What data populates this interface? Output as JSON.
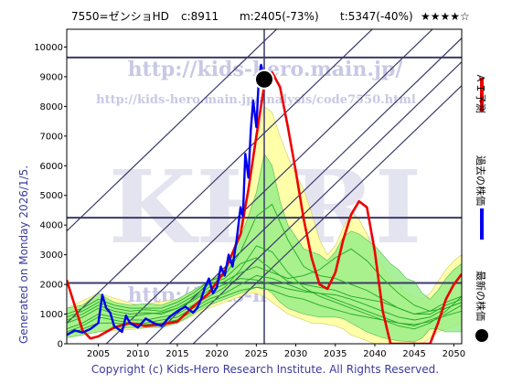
{
  "header": {
    "ticker": "7550=ゼンショHD",
    "current": "c:8911",
    "max": "m:2405(-73%)",
    "target": "t:5347(-40%)",
    "stars": "★★★★☆"
  },
  "side_labels": {
    "generated": "Generated on Monday 2026/1/5.",
    "copyright": "Copyright (c) Kids-Hero Research Institute. All Rights Reserved."
  },
  "legend": [
    {
      "label": "ＡＩ予測",
      "color": "#ee0000",
      "kind": "line"
    },
    {
      "label": "過去の株価",
      "color": "#0000ee",
      "kind": "line"
    },
    {
      "label": "最新の株価",
      "color": "#000000",
      "kind": "dot"
    }
  ],
  "watermark": {
    "url_big": "http://kids-hero.main.jp/",
    "url_small": "http://kids-hero.main.jp/analysis/code7550.html",
    "logo": "KHRI",
    "url_bottom": "http://kids-hero.main.jp/"
  },
  "colors": {
    "prediction": "#ee0000",
    "history": "#0000ee",
    "sims": "#22aa22",
    "band_green": "#99ee88",
    "band_yellow": "#ffffaa",
    "lines": "#3a3a6a"
  },
  "chart_data": {
    "type": "line",
    "xlim": [
      2001,
      2051
    ],
    "ylim": [
      0,
      10600
    ],
    "xticks": [
      "2005",
      "2010",
      "2015",
      "2020",
      "2025",
      "2030",
      "2035",
      "2040",
      "2045",
      "2050"
    ],
    "yticks": [
      "0",
      "1000",
      "2000",
      "3000",
      "4000",
      "5000",
      "6000",
      "7000",
      "8000",
      "9000",
      "10000"
    ],
    "hlines": [
      9650,
      4250,
      2050
    ],
    "vline": 2026,
    "latest": {
      "x": 2026,
      "y": 8911
    },
    "history": {
      "x": [
        2001,
        2002,
        2003,
        2004,
        2005,
        2005.5,
        2006,
        2006.5,
        2007,
        2008,
        2008.5,
        2009,
        2010,
        2011,
        2012,
        2013,
        2014,
        2015,
        2016,
        2017,
        2017.5,
        2018,
        2018.5,
        2019,
        2019.5,
        2020,
        2020.5,
        2021,
        2021.5,
        2022,
        2022.5,
        2023,
        2023.3,
        2023.6,
        2024,
        2024.3,
        2024.6,
        2025,
        2025.3,
        2025.6,
        2026
      ],
      "y": [
        300,
        450,
        380,
        500,
        700,
        1650,
        1200,
        1050,
        600,
        400,
        950,
        700,
        550,
        850,
        700,
        600,
        900,
        1100,
        1250,
        1050,
        1200,
        1500,
        1900,
        2200,
        1700,
        1900,
        2600,
        2300,
        3000,
        2600,
        3500,
        4600,
        4300,
        6400,
        5600,
        7200,
        8200,
        7300,
        8900,
        9400,
        8911
      ]
    },
    "prediction": {
      "x": [
        2001,
        2002,
        2003,
        2004,
        2005,
        2007,
        2009,
        2011,
        2013,
        2015,
        2017,
        2019,
        2021,
        2023,
        2024,
        2025,
        2026,
        2027,
        2028,
        2029,
        2030,
        2031,
        2032,
        2033,
        2034,
        2035,
        2036,
        2037,
        2038,
        2039,
        2040,
        2041,
        2042,
        2043,
        2044,
        2045,
        2046,
        2047,
        2048,
        2049,
        2050,
        2051
      ],
      "y": [
        2150,
        1300,
        450,
        180,
        250,
        550,
        700,
        600,
        650,
        750,
        1250,
        1700,
        2450,
        3700,
        5200,
        7000,
        8700,
        9150,
        8650,
        7300,
        5800,
        4200,
        2900,
        2000,
        1850,
        2400,
        3500,
        4350,
        4800,
        4600,
        3100,
        1100,
        0,
        0,
        0,
        0,
        0,
        0,
        700,
        1500,
        2000,
        2350
      ]
    },
    "sims_green_band": {
      "x": [
        2001,
        2003,
        2005,
        2007,
        2009,
        2011,
        2013,
        2015,
        2017,
        2019,
        2021,
        2023,
        2024,
        2025,
        2026,
        2027,
        2028,
        2029,
        2030,
        2031,
        2032,
        2033,
        2034,
        2035,
        2036,
        2037,
        2038,
        2039,
        2040,
        2041,
        2042,
        2043,
        2044,
        2045,
        2046,
        2047,
        2048,
        2049,
        2050,
        2051
      ],
      "upper": [
        1200,
        1300,
        1700,
        1400,
        1300,
        1350,
        1300,
        1500,
        1800,
        2100,
        2400,
        3600,
        4300,
        5100,
        6400,
        6000,
        4800,
        4000,
        3600,
        3200,
        3100,
        3000,
        2800,
        3100,
        3600,
        3800,
        3700,
        3500,
        3300,
        3000,
        2700,
        2500,
        2200,
        2100,
        1700,
        1500,
        1800,
        2200,
        2500,
        2700
      ],
      "lower": [
        200,
        300,
        400,
        500,
        550,
        550,
        550,
        700,
        1000,
        1300,
        1500,
        1700,
        1800,
        1900,
        1900,
        1700,
        1400,
        1200,
        1100,
        1000,
        950,
        900,
        900,
        900,
        850,
        700,
        550,
        400,
        300,
        200,
        150,
        100,
        80,
        60,
        200,
        500,
        500,
        400,
        400,
        400
      ]
    },
    "sims_yellow_band": {
      "x": [
        2001,
        2005,
        2010,
        2015,
        2019,
        2021,
        2022,
        2023,
        2024,
        2025,
        2026,
        2027,
        2028,
        2029,
        2030,
        2031,
        2032,
        2033,
        2034,
        2035,
        2036,
        2037,
        2038,
        2039,
        2040,
        2041,
        2042,
        2043,
        2044,
        2045,
        2046,
        2047,
        2048,
        2049,
        2050,
        2051
      ],
      "upper": [
        1200,
        1700,
        1300,
        1500,
        2100,
        2500,
        3100,
        4000,
        5200,
        6800,
        8000,
        7800,
        7000,
        6300,
        5700,
        5200,
        4400,
        3500,
        3000,
        3300,
        3900,
        4400,
        4200,
        3700,
        3000,
        2600,
        2200,
        1900,
        1700,
        1600,
        1500,
        1700,
        2100,
        2500,
        2800,
        3000
      ],
      "lower": [
        200,
        400,
        500,
        700,
        1200,
        1400,
        1500,
        1600,
        1700,
        1700,
        1600,
        1400,
        1200,
        1000,
        900,
        800,
        700,
        700,
        650,
        600,
        500,
        300,
        200,
        100,
        0,
        0,
        0,
        0,
        0,
        0,
        0,
        200,
        400,
        500,
        600,
        700
      ]
    },
    "sims": [
      {
        "x": [
          2001,
          2003,
          2005,
          2007,
          2009,
          2011,
          2013,
          2015,
          2017,
          2019,
          2021,
          2023,
          2025,
          2027,
          2029,
          2031,
          2033,
          2035,
          2037,
          2039,
          2041,
          2043,
          2045,
          2047,
          2049,
          2051
        ],
        "y": [
          700,
          900,
          1200,
          1000,
          900,
          1000,
          1050,
          1200,
          1450,
          1800,
          2000,
          2200,
          2150,
          2000,
          1850,
          1750,
          1700,
          1650,
          1500,
          1300,
          1100,
          900,
          800,
          900,
          1200,
          1400
        ]
      },
      {
        "x": [
          2001,
          2003,
          2005,
          2007,
          2009,
          2011,
          2013,
          2015,
          2017,
          2019,
          2021,
          2023,
          2025,
          2027,
          2029,
          2031,
          2033,
          2035,
          2037,
          2039,
          2041,
          2043,
          2045,
          2047,
          2049,
          2051
        ],
        "y": [
          500,
          700,
          1000,
          900,
          800,
          800,
          900,
          1000,
          1300,
          1600,
          1900,
          2500,
          3300,
          3100,
          2400,
          1900,
          1600,
          1400,
          1200,
          1000,
          800,
          600,
          500,
          700,
          1100,
          1600
        ]
      },
      {
        "x": [
          2001,
          2003,
          2005,
          2007,
          2009,
          2011,
          2013,
          2015,
          2017,
          2019,
          2021,
          2023,
          2025,
          2027,
          2029,
          2031,
          2033,
          2035,
          2037,
          2039,
          2041,
          2043,
          2045,
          2047,
          2049,
          2051
        ],
        "y": [
          900,
          1100,
          1400,
          1200,
          1100,
          1150,
          1100,
          1300,
          1600,
          2000,
          2200,
          2700,
          2900,
          2500,
          2100,
          2000,
          1900,
          1800,
          1600,
          1500,
          1400,
          1200,
          1000,
          1000,
          1300,
          1500
        ]
      },
      {
        "x": [
          2001,
          2003,
          2005,
          2007,
          2009,
          2011,
          2013,
          2015,
          2017,
          2019,
          2021,
          2023,
          2025,
          2027,
          2029,
          2031,
          2033,
          2035,
          2037,
          2039,
          2041,
          2043,
          2045,
          2047,
          2049,
          2051
        ],
        "y": [
          400,
          600,
          900,
          800,
          700,
          700,
          800,
          900,
          1200,
          1500,
          1700,
          2000,
          2300,
          2200,
          2000,
          1800,
          1700,
          1500,
          1300,
          1100,
          900,
          700,
          600,
          800,
          1000,
          1300
        ]
      },
      {
        "x": [
          2001,
          2003,
          2005,
          2007,
          2009,
          2011,
          2013,
          2015,
          2017,
          2019,
          2021,
          2023,
          2025,
          2027,
          2029,
          2031,
          2033,
          2035,
          2037,
          2039,
          2041,
          2043,
          2045,
          2047,
          2049,
          2051
        ],
        "y": [
          1000,
          1200,
          1500,
          1300,
          1200,
          1200,
          1200,
          1400,
          1700,
          2100,
          2300,
          3100,
          4300,
          4700,
          3500,
          2600,
          2300,
          2200,
          2000,
          1800,
          1500,
          1200,
          1000,
          1100,
          1400,
          1600
        ]
      },
      {
        "x": [
          2001,
          2003,
          2005,
          2007,
          2009,
          2011,
          2013,
          2015,
          2017,
          2019,
          2021,
          2023,
          2025,
          2027,
          2029,
          2031,
          2033,
          2035,
          2037,
          2039,
          2041,
          2043,
          2045,
          2047,
          2049,
          2051
        ],
        "y": [
          300,
          500,
          700,
          700,
          650,
          650,
          700,
          800,
          1100,
          1400,
          1600,
          1800,
          1900,
          1800,
          1600,
          1500,
          1300,
          1150,
          1000,
          900,
          800,
          700,
          650,
          750,
          950,
          1100
        ]
      },
      {
        "x": [
          2001,
          2003,
          2005,
          2007,
          2009,
          2011,
          2013,
          2015,
          2017,
          2019,
          2021,
          2023,
          2025,
          2027,
          2029,
          2031,
          2033,
          2035,
          2037,
          2039,
          2041,
          2043,
          2045,
          2047,
          2049,
          2051
        ],
        "y": [
          800,
          1000,
          1300,
          1100,
          1000,
          1050,
          1000,
          1200,
          1500,
          1900,
          2100,
          2400,
          2600,
          2400,
          2200,
          2300,
          2500,
          2900,
          3200,
          2800,
          2200,
          1700,
          1300,
          1100,
          1200,
          1400
        ]
      }
    ],
    "diagonals": [
      {
        "x": [
          2001,
          2051
        ],
        "y": [
          700,
          13500
        ]
      },
      {
        "x": [
          2001,
          2051
        ],
        "y": [
          3800,
          16600
        ]
      },
      {
        "x": [
          2006,
          2051
        ],
        "y": [
          0,
          11550
        ]
      },
      {
        "x": [
          2011,
          2051
        ],
        "y": [
          0,
          10300
        ]
      },
      {
        "x": [
          2014,
          2051
        ],
        "y": [
          0,
          9500
        ]
      },
      {
        "x": [
          2017,
          2051
        ],
        "y": [
          0,
          8700
        ]
      }
    ]
  }
}
